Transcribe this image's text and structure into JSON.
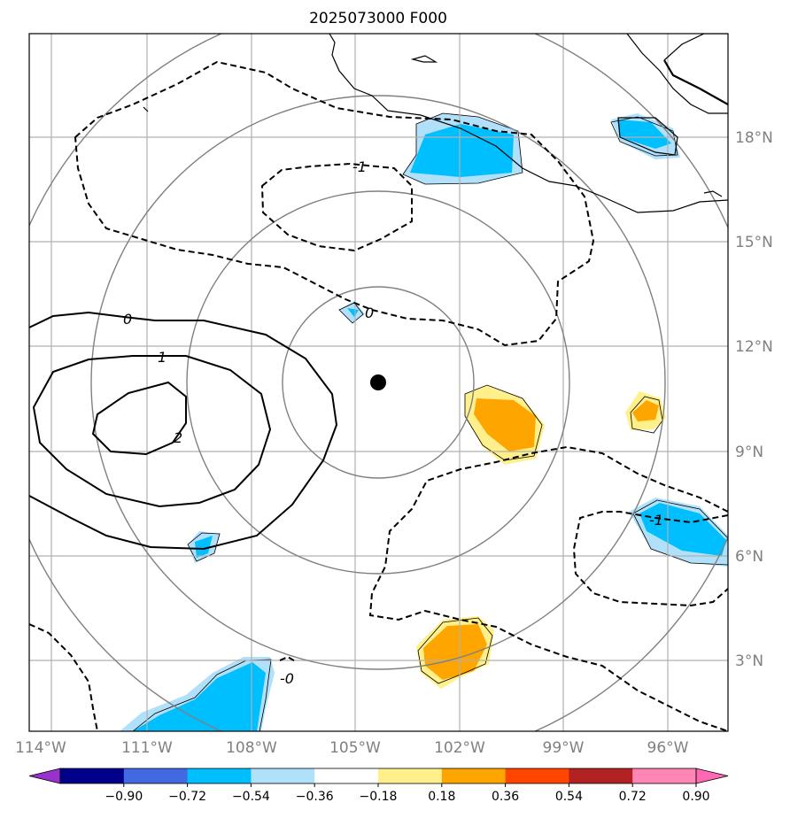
{
  "title": "2025073000 F000",
  "map": {
    "lon_ticks": [
      "114°W",
      "111°W",
      "108°W",
      "105°W",
      "102°W",
      "99°W",
      "96°W"
    ],
    "lat_ticks": [
      "18°N",
      "15°N",
      "12°N",
      "9°N",
      "6°N",
      "3°N"
    ],
    "center_marker": "storm-center"
  },
  "contour_labels": {
    "zero_west": "0",
    "one_west": "1",
    "two_west": "2",
    "neg_one_north": "-1",
    "zero_center": "0",
    "neg_one_east": "-1",
    "zero_south": "-0"
  },
  "colorbar": {
    "ticks": [
      "−0.90",
      "−0.72",
      "−0.54",
      "−0.36",
      "−0.18",
      "0.18",
      "0.36",
      "0.54",
      "0.72",
      "0.90"
    ],
    "colors": [
      "#9932cc",
      "#00008b",
      "#4169e1",
      "#00bfff",
      "#b0e0fa",
      "#ffffff",
      "#fff08c",
      "#ffa500",
      "#ff4500",
      "#b22222",
      "#ff85b4",
      "#ff69b4"
    ]
  },
  "chart_data": {
    "type": "heatmap",
    "title": "2025073000 F000",
    "x_axis": {
      "label": "",
      "range": [
        "114°W",
        "94°W"
      ],
      "ticks": [
        "114°W",
        "111°W",
        "108°W",
        "105°W",
        "102°W",
        "99°W",
        "96°W"
      ]
    },
    "y_axis": {
      "label": "",
      "range": [
        "1°N",
        "21°N"
      ],
      "ticks": [
        "3°N",
        "6°N",
        "9°N",
        "12°N",
        "15°N",
        "18°N"
      ]
    },
    "contour_levels": [
      -1,
      0,
      1,
      2
    ],
    "shading_levels": [
      -0.9,
      -0.72,
      -0.54,
      -0.36,
      -0.18,
      0.18,
      0.36,
      0.54,
      0.72,
      0.9
    ],
    "center_marker": {
      "lon": "104.4°W",
      "lat": "11°N"
    }
  }
}
